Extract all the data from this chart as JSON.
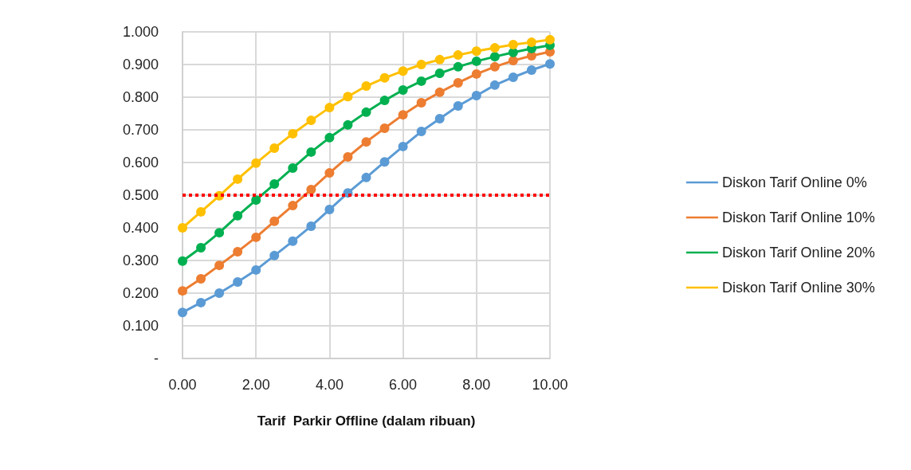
{
  "chart_data": {
    "type": "line",
    "xlabel": "Tarif  Parkir Offline (dalam ribuan)",
    "x": [
      0,
      0.5,
      1,
      1.5,
      2,
      2.5,
      3,
      3.5,
      4,
      4.5,
      5,
      5.5,
      6,
      6.5,
      7,
      7.5,
      8,
      8.5,
      9,
      9.5,
      10
    ],
    "series": [
      {
        "name": "Diskon Tarif Online 0%",
        "color": "#5b9bd5",
        "values": [
          0.141,
          0.171,
          0.2,
          0.234,
          0.271,
          0.315,
          0.359,
          0.405,
          0.456,
          0.507,
          0.554,
          0.602,
          0.649,
          0.695,
          0.734,
          0.773,
          0.805,
          0.837,
          0.861,
          0.883,
          0.902
        ]
      },
      {
        "name": "Diskon Tarif Online 10%",
        "color": "#ed7d31",
        "values": [
          0.207,
          0.244,
          0.285,
          0.327,
          0.371,
          0.42,
          0.468,
          0.517,
          0.568,
          0.617,
          0.663,
          0.705,
          0.746,
          0.783,
          0.815,
          0.844,
          0.871,
          0.893,
          0.912,
          0.927,
          0.939
        ]
      },
      {
        "name": "Diskon Tarif Online 20%",
        "color": "#00b050",
        "values": [
          0.298,
          0.339,
          0.385,
          0.437,
          0.485,
          0.534,
          0.583,
          0.632,
          0.676,
          0.715,
          0.754,
          0.79,
          0.822,
          0.849,
          0.873,
          0.893,
          0.91,
          0.924,
          0.937,
          0.949,
          0.959
        ]
      },
      {
        "name": "Diskon Tarif Online 30%",
        "color": "#ffc000",
        "values": [
          0.4,
          0.449,
          0.498,
          0.549,
          0.598,
          0.644,
          0.688,
          0.729,
          0.768,
          0.802,
          0.834,
          0.859,
          0.88,
          0.9,
          0.915,
          0.929,
          0.941,
          0.951,
          0.961,
          0.968,
          0.976
        ]
      }
    ],
    "xlim": [
      0,
      10
    ],
    "xticks": [
      {
        "value": 0,
        "label": "0.00"
      },
      {
        "value": 2,
        "label": "2.00"
      },
      {
        "value": 4,
        "label": "4.00"
      },
      {
        "value": 6,
        "label": "6.00"
      },
      {
        "value": 8,
        "label": "8.00"
      },
      {
        "value": 10,
        "label": "10.00"
      }
    ],
    "ylim": [
      0,
      1
    ],
    "yticks": [
      {
        "value": 0,
        "label": "-"
      },
      {
        "value": 0.1,
        "label": "0.100"
      },
      {
        "value": 0.2,
        "label": "0.200"
      },
      {
        "value": 0.3,
        "label": "0.300"
      },
      {
        "value": 0.4,
        "label": "0.400"
      },
      {
        "value": 0.5,
        "label": "0.500"
      },
      {
        "value": 0.6,
        "label": "0.600"
      },
      {
        "value": 0.7,
        "label": "0.700"
      },
      {
        "value": 0.8,
        "label": "0.800"
      },
      {
        "value": 0.9,
        "label": "0.900"
      },
      {
        "value": 1,
        "label": "1.000"
      }
    ],
    "ref_lines": [
      {
        "axis": "y",
        "value": 0.5,
        "color": "#ff0000",
        "line_style": "dotted"
      }
    ],
    "grid": true,
    "legend": "right",
    "marker": "circle",
    "line_style": "solid"
  }
}
